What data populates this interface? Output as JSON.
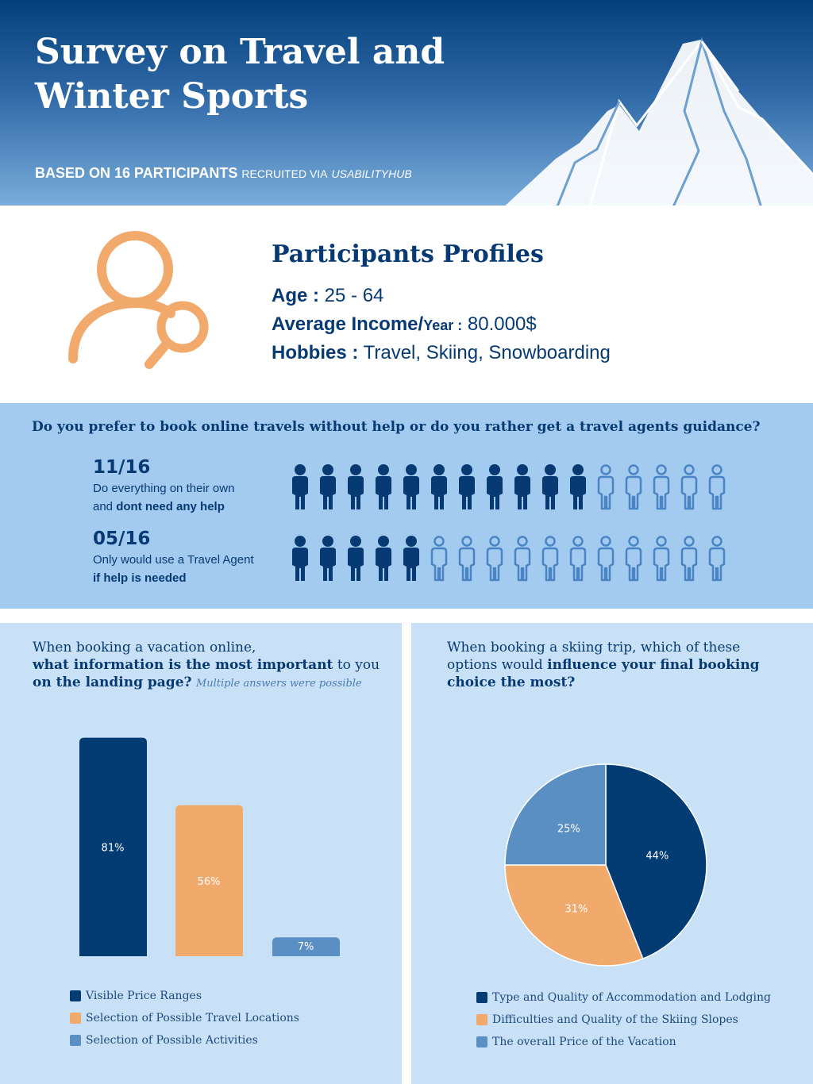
{
  "header": {
    "title_line1": "Survey on Travel and",
    "title_line2": "Winter Sports",
    "sub_bold": "BASED ON 16 PARTICIPANTS",
    "sub_small": "RECRUITED VIA",
    "sub_source": "USABILITYHUB"
  },
  "profile": {
    "heading": "Participants Profiles",
    "age_label": "Age :",
    "age_value": "25 - 64",
    "income_label": "Average Income/",
    "income_unit": "Year :",
    "income_value": "80.000$",
    "hobbies_label": "Hobbies :",
    "hobbies_value": "Travel, Skiing, Snowboarding",
    "icon": "user-search-icon"
  },
  "question": {
    "text": "Do you prefer to book online travels without help or do you rather get a travel agents guidance?",
    "stats": [
      {
        "count": "11/16",
        "line1": "Do everything on their own",
        "line2_pre": "and ",
        "line2_bold": "dont need any help",
        "filled": 11,
        "total": 16
      },
      {
        "count": "05/16",
        "line1": "Only would use a Travel Agent",
        "line2_pre": "",
        "line2_bold": "if help is needed",
        "filled": 5,
        "total": 16
      }
    ],
    "colors": {
      "filled": "#073a73",
      "outline": "#4a84c4"
    }
  },
  "bar_panel": {
    "q_line1": "When booking a vacation online,",
    "q_bold1": "what information is the most important",
    "q_rest1": " to you",
    "q_bold2": "on the landing page?",
    "q_note": "Multiple answers were possible"
  },
  "pie_panel": {
    "q_line1": "When booking a skiing trip, which of these",
    "q_pre2": "options would ",
    "q_bold2": "influence your final booking",
    "q_bold3": "choice the most?"
  },
  "chart_data": [
    {
      "type": "bar",
      "categories": [
        "Visible Price Ranges",
        "Selection of Possible Travel Locations",
        "Selection of Possible Activities"
      ],
      "values": [
        81,
        56,
        7
      ],
      "labels": [
        "81%",
        "56%",
        "7%"
      ],
      "colors": [
        "#033b73",
        "#f2aa6c",
        "#5a8fc4"
      ],
      "ylim": [
        0,
        100
      ],
      "legend": "bottom"
    },
    {
      "type": "pie",
      "categories": [
        "Type and Quality of Accommodation and Lodging",
        "Difficulties and Quality of the Skiing Slopes",
        "The overall Price of the Vacation"
      ],
      "values": [
        44,
        31,
        25
      ],
      "labels": [
        "44%",
        "31%",
        "25%"
      ],
      "colors": [
        "#033b73",
        "#f2aa6c",
        "#5a8fc4"
      ],
      "legend": "bottom"
    }
  ]
}
